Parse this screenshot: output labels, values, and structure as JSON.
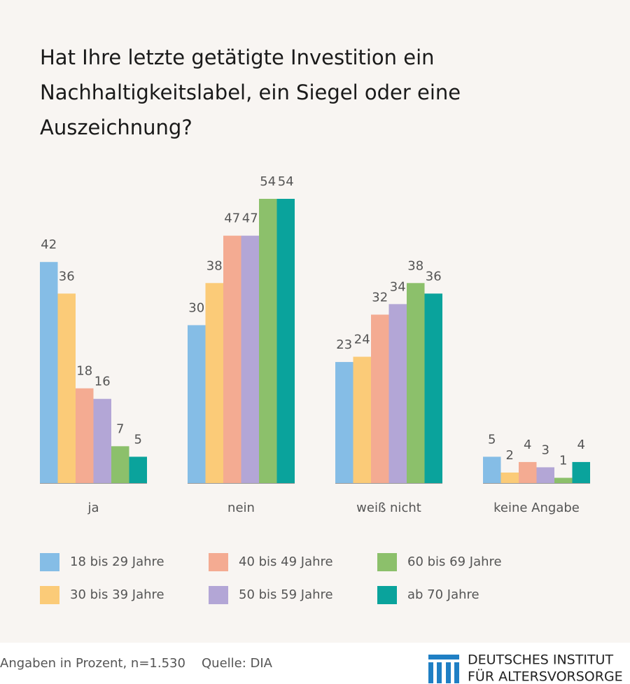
{
  "chart_data": {
    "type": "bar",
    "title": "Hat Ihre letzte getätigte Investition ein Nachhaltigkeitslabel, ein Siegel oder eine Auszeichnung?",
    "categories": [
      "ja",
      "nein",
      "weiß nicht",
      "keine Angabe"
    ],
    "series": [
      {
        "name": "18 bis 29 Jahre",
        "color": "#85bde6",
        "values": [
          42,
          30,
          23,
          5
        ]
      },
      {
        "name": "30 bis 39 Jahre",
        "color": "#fbcb78",
        "values": [
          36,
          38,
          24,
          2
        ]
      },
      {
        "name": "40 bis 49 Jahre",
        "color": "#f4ab92",
        "values": [
          18,
          47,
          32,
          4
        ]
      },
      {
        "name": "50 bis 59 Jahre",
        "color": "#b3a6d6",
        "values": [
          16,
          47,
          34,
          3
        ]
      },
      {
        "name": "60 bis 69 Jahre",
        "color": "#8cc06b",
        "values": [
          7,
          54,
          38,
          1
        ]
      },
      {
        "name": "ab 70 Jahre",
        "color": "#0aa39c",
        "values": [
          5,
          54,
          36,
          4
        ]
      }
    ]
  },
  "footer": {
    "note": "Angaben in Prozent, n=1.530",
    "source": "Quelle: DIA",
    "logo": [
      "DEUTSCHES INSTITUT",
      "FÜR ALTERSVORSORGE"
    ]
  }
}
